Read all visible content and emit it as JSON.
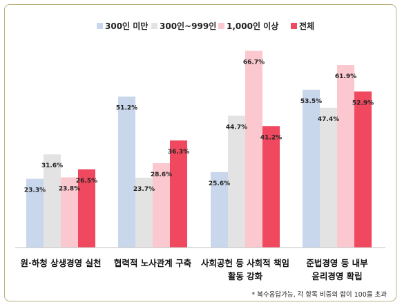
{
  "chart_data": {
    "type": "bar",
    "categories": [
      [
        "원·하청 상생경영 실천"
      ],
      [
        "협력적 노사관계 구축"
      ],
      [
        "사회공헌 등 사회적 책임",
        "활동 강화"
      ],
      [
        "준법경영 등 내부",
        "윤리경영 확립"
      ]
    ],
    "series": [
      {
        "name": "300인 미만",
        "values": [
          23.3,
          51.2,
          25.6,
          53.5
        ],
        "labels": [
          "23.3%",
          "51.2%",
          "25.6%",
          "53.5%"
        ],
        "color": "#c9d7ec"
      },
      {
        "name": "300인~999인",
        "values": [
          31.6,
          23.7,
          44.7,
          47.4
        ],
        "labels": [
          "31.6%",
          "23.7%",
          "44.7%",
          "47.4%"
        ],
        "color": "#e3e3e3"
      },
      {
        "name": "1,000인 이상",
        "values": [
          23.8,
          28.6,
          66.7,
          61.9
        ],
        "labels": [
          "23.8%",
          "28.6%",
          "66.7%",
          "61.9%"
        ],
        "color": "#fcc8cf"
      },
      {
        "name": "전체",
        "values": [
          26.5,
          36.3,
          41.2,
          52.9
        ],
        "labels": [
          "26.5%",
          "36.3%",
          "41.2%",
          "52.9%"
        ],
        "color": "#f0485e"
      }
    ],
    "ylim": [
      0,
      70
    ],
    "grid": false,
    "legend": "top",
    "note": "* 복수응답가능, 각 항목 비중의 합이 100을 초과"
  }
}
